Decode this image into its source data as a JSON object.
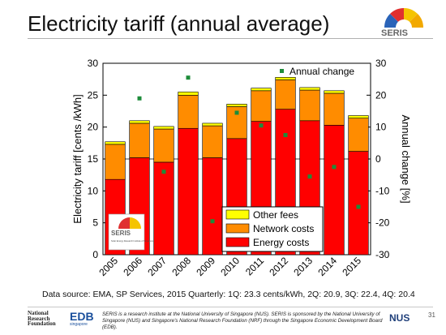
{
  "slide": {
    "title": "Electricity tariff (annual average)",
    "logo_text": "SERIS",
    "source_note": "Data source: EMA, SP Services, 2015 Quarterly: 1Q: 23.3 cents/kWh, 2Q: 20.9, 3Q: 22.4, 4Q: 20.4",
    "footer_text": "SERIS is a research institute at the National University of Singapore (NUS). SERIS is sponsored by the National University of Singapore (NUS) and Singapore's National Research Foundation (NRF) through the Singapore Economic Development Board (EDB).",
    "footer_logo_left": [
      "National",
      "Research",
      "Foundation"
    ],
    "edb_logo": "EDB",
    "edb_sub": "singapore",
    "nus_logo": "NUS",
    "page_number": "31",
    "inset_logo_text": "SERIS",
    "inset_logo_caption": "Solar Energy Research Institute of Singapore"
  },
  "chart_data": {
    "type": "bar",
    "stacked": true,
    "categories": [
      "2005",
      "2006",
      "2007",
      "2008",
      "2009",
      "2010",
      "2011",
      "2012",
      "2013",
      "2014",
      "2015"
    ],
    "series": [
      {
        "name": "Energy costs",
        "color": "#ff0000",
        "values": [
          11.8,
          15.2,
          14.5,
          19.8,
          15.2,
          18.2,
          20.9,
          22.8,
          21.0,
          20.3,
          16.2
        ]
      },
      {
        "name": "Network costs",
        "color": "#ff8c00",
        "values": [
          5.5,
          5.4,
          5.2,
          5.2,
          5.0,
          5.0,
          4.8,
          4.6,
          4.8,
          5.0,
          5.2
        ]
      },
      {
        "name": "Other fees",
        "color": "#ffff00",
        "values": [
          0.4,
          0.4,
          0.4,
          0.5,
          0.4,
          0.4,
          0.4,
          0.4,
          0.4,
          0.4,
          0.4
        ]
      }
    ],
    "annual_change": {
      "name": "Annual change",
      "color": "#1e8c3a",
      "values": [
        null,
        19,
        -4,
        25.5,
        -19.5,
        14.5,
        10.5,
        7.5,
        -5.5,
        -2.5,
        -15
      ]
    },
    "ylabel_left": "Electricity tariff [cents /kWh]",
    "ylabel_right": "Annual change [%]",
    "ylim_left": [
      0,
      30
    ],
    "yticks_left": [
      "0",
      "5",
      "10",
      "15",
      "20",
      "25",
      "30"
    ],
    "ylim_right": [
      -30,
      30
    ],
    "yticks_right": [
      "-30",
      "-20",
      "-10",
      "0",
      "10",
      "20",
      "30"
    ],
    "legend": [
      "Other fees",
      "Network costs",
      "Energy costs"
    ],
    "legend_position": "bottom-right",
    "grid": false
  }
}
